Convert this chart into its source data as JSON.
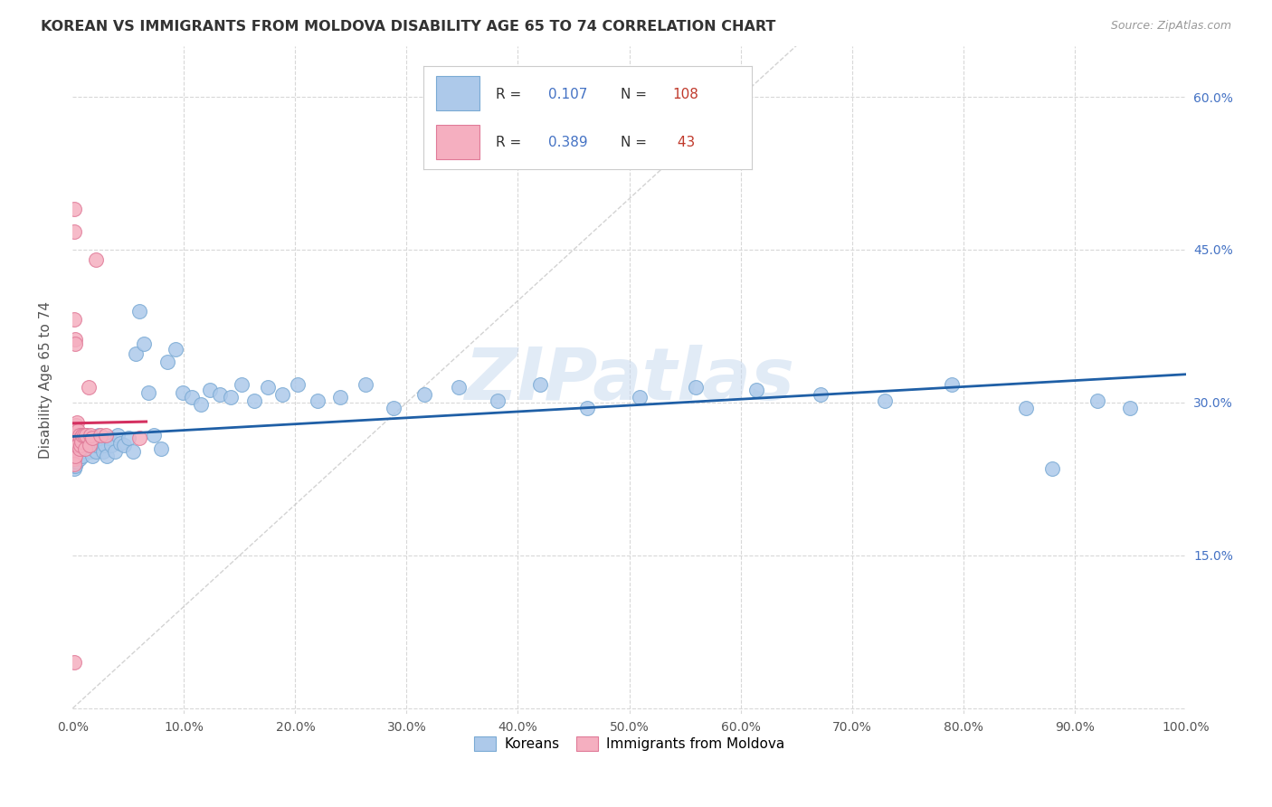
{
  "title": "KOREAN VS IMMIGRANTS FROM MOLDOVA DISABILITY AGE 65 TO 74 CORRELATION CHART",
  "source": "Source: ZipAtlas.com",
  "ylabel": "Disability Age 65 to 74",
  "xlim": [
    0.0,
    1.0
  ],
  "ylim": [
    -0.005,
    0.65
  ],
  "ytick_positions": [
    0.0,
    0.15,
    0.3,
    0.45,
    0.6
  ],
  "ytick_labels_right": [
    "",
    "15.0%",
    "30.0%",
    "45.0%",
    "60.0%"
  ],
  "xtick_positions": [
    0.0,
    0.1,
    0.2,
    0.3,
    0.4,
    0.5,
    0.6,
    0.7,
    0.8,
    0.9,
    1.0
  ],
  "xticklabels": [
    "0.0%",
    "10.0%",
    "20.0%",
    "30.0%",
    "40.0%",
    "50.0%",
    "60.0%",
    "70.0%",
    "80.0%",
    "90.0%",
    "100.0%"
  ],
  "background_color": "#ffffff",
  "grid_color": "#d8d8d8",
  "watermark": "ZIPatlas",
  "korean_color": "#adc9ea",
  "korean_edge": "#7aaad4",
  "korean_line": "#1f5fa6",
  "moldova_color": "#f5afc0",
  "moldova_edge": "#e07a98",
  "moldova_line": "#d43060",
  "R_korean": 0.107,
  "N_korean": 108,
  "R_moldova": 0.389,
  "N_moldova": 43,
  "korean_x": [
    0.001,
    0.001,
    0.001,
    0.001,
    0.001,
    0.001,
    0.001,
    0.001,
    0.001,
    0.001,
    0.002,
    0.002,
    0.002,
    0.002,
    0.002,
    0.002,
    0.002,
    0.002,
    0.002,
    0.003,
    0.003,
    0.003,
    0.003,
    0.003,
    0.003,
    0.004,
    0.004,
    0.004,
    0.004,
    0.005,
    0.005,
    0.005,
    0.005,
    0.006,
    0.006,
    0.006,
    0.007,
    0.007,
    0.007,
    0.008,
    0.008,
    0.009,
    0.009,
    0.01,
    0.01,
    0.011,
    0.012,
    0.013,
    0.014,
    0.015,
    0.016,
    0.017,
    0.018,
    0.019,
    0.02,
    0.021,
    0.022,
    0.023,
    0.025,
    0.027,
    0.029,
    0.031,
    0.033,
    0.035,
    0.038,
    0.04,
    0.043,
    0.046,
    0.05,
    0.054,
    0.057,
    0.06,
    0.064,
    0.068,
    0.073,
    0.079,
    0.085,
    0.092,
    0.099,
    0.107,
    0.115,
    0.123,
    0.132,
    0.142,
    0.152,
    0.163,
    0.175,
    0.188,
    0.202,
    0.22,
    0.24,
    0.263,
    0.288,
    0.316,
    0.347,
    0.382,
    0.42,
    0.462,
    0.509,
    0.56,
    0.614,
    0.672,
    0.73,
    0.79,
    0.856,
    0.88,
    0.921,
    0.95
  ],
  "korean_y": [
    0.24,
    0.252,
    0.255,
    0.248,
    0.26,
    0.242,
    0.238,
    0.25,
    0.235,
    0.265,
    0.258,
    0.245,
    0.252,
    0.262,
    0.248,
    0.238,
    0.265,
    0.255,
    0.242,
    0.268,
    0.255,
    0.248,
    0.26,
    0.245,
    0.252,
    0.265,
    0.258,
    0.242,
    0.252,
    0.26,
    0.248,
    0.255,
    0.268,
    0.258,
    0.245,
    0.262,
    0.255,
    0.248,
    0.262,
    0.265,
    0.252,
    0.258,
    0.248,
    0.265,
    0.255,
    0.26,
    0.268,
    0.255,
    0.258,
    0.265,
    0.252,
    0.26,
    0.248,
    0.258,
    0.265,
    0.252,
    0.258,
    0.268,
    0.26,
    0.252,
    0.258,
    0.248,
    0.265,
    0.258,
    0.252,
    0.268,
    0.26,
    0.258,
    0.265,
    0.252,
    0.348,
    0.39,
    0.358,
    0.31,
    0.268,
    0.255,
    0.34,
    0.352,
    0.31,
    0.305,
    0.298,
    0.312,
    0.308,
    0.305,
    0.318,
    0.302,
    0.315,
    0.308,
    0.318,
    0.302,
    0.305,
    0.318,
    0.295,
    0.308,
    0.315,
    0.302,
    0.318,
    0.295,
    0.305,
    0.315,
    0.312,
    0.308,
    0.302,
    0.318,
    0.295,
    0.235,
    0.302,
    0.295
  ],
  "moldova_x": [
    0.001,
    0.001,
    0.001,
    0.001,
    0.001,
    0.001,
    0.001,
    0.001,
    0.001,
    0.001,
    0.002,
    0.002,
    0.002,
    0.002,
    0.003,
    0.003,
    0.003,
    0.004,
    0.004,
    0.004,
    0.005,
    0.005,
    0.006,
    0.006,
    0.007,
    0.007,
    0.008,
    0.009,
    0.01,
    0.011,
    0.012,
    0.014,
    0.015,
    0.016,
    0.018,
    0.021,
    0.025,
    0.03,
    0.06,
    0.001,
    0.001,
    0.001,
    0.001
  ],
  "moldova_y": [
    0.258,
    0.265,
    0.268,
    0.252,
    0.245,
    0.255,
    0.262,
    0.272,
    0.248,
    0.24,
    0.362,
    0.358,
    0.268,
    0.248,
    0.278,
    0.265,
    0.258,
    0.28,
    0.265,
    0.258,
    0.272,
    0.258,
    0.268,
    0.255,
    0.265,
    0.258,
    0.262,
    0.268,
    0.268,
    0.255,
    0.268,
    0.315,
    0.258,
    0.268,
    0.265,
    0.44,
    0.268,
    0.268,
    0.265,
    0.49,
    0.468,
    0.382,
    0.045
  ]
}
